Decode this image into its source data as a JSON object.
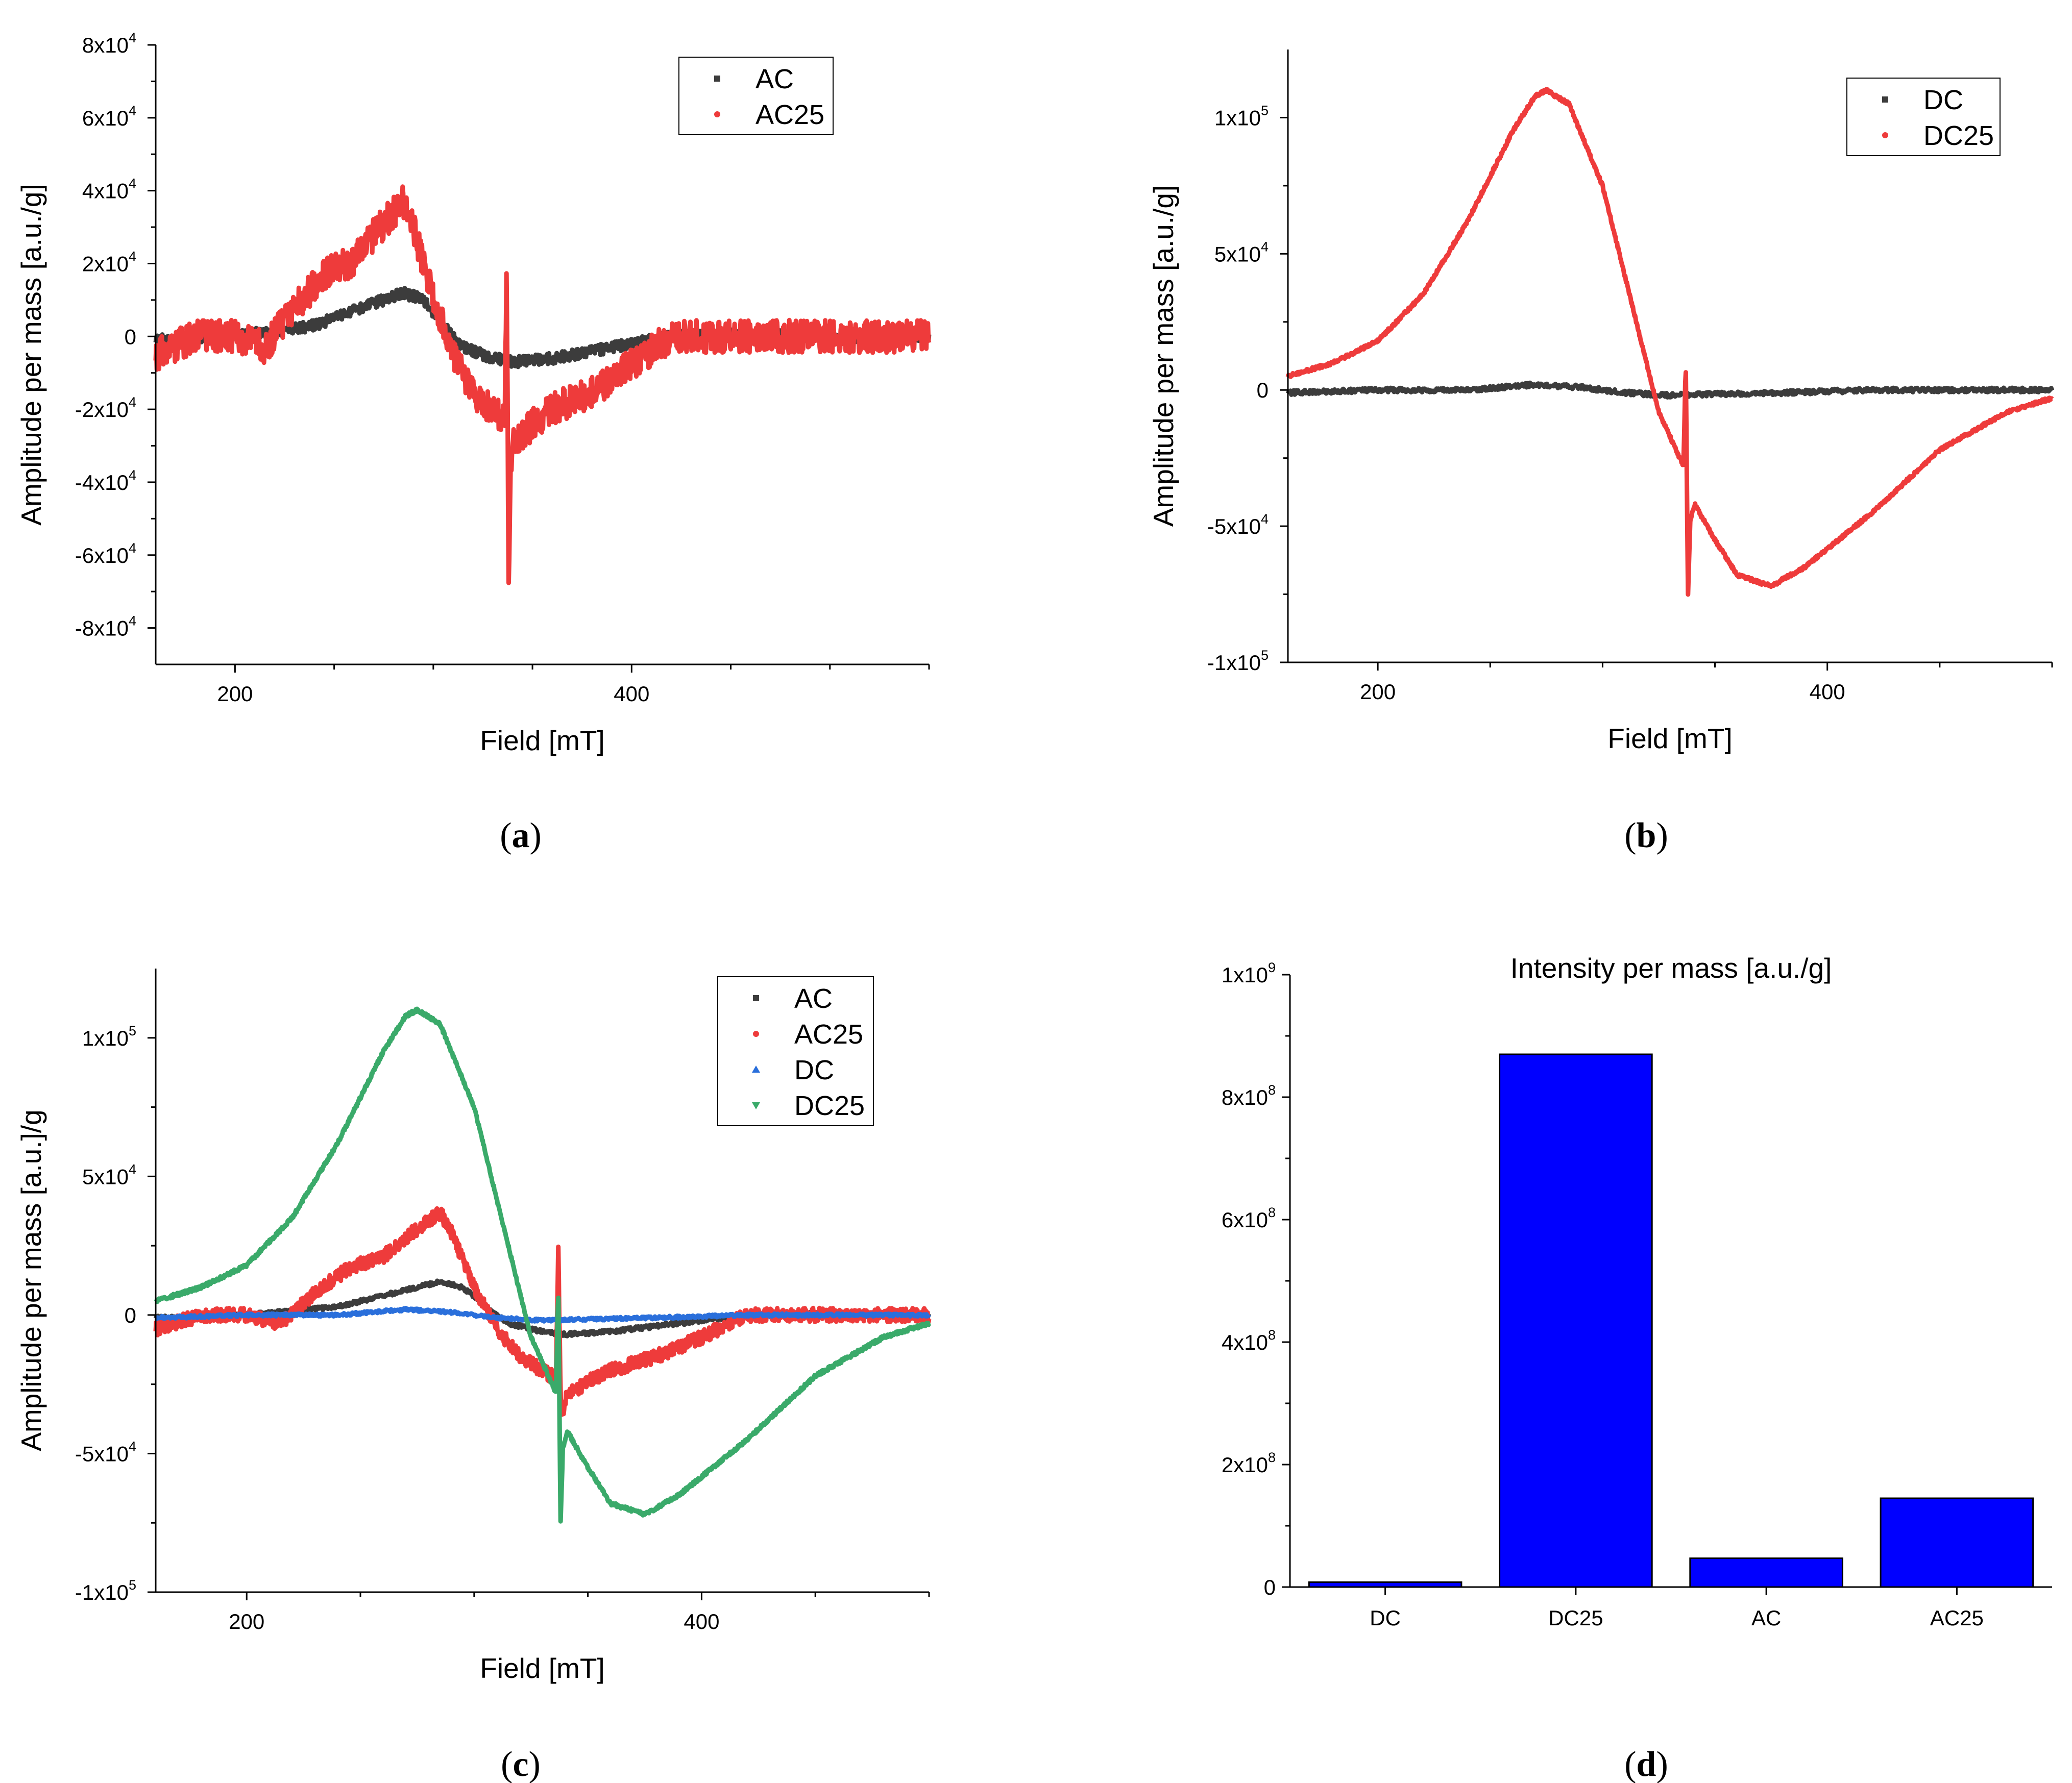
{
  "figure": {
    "captions": [
      "(a)",
      "(b)",
      "(c)",
      "(d)"
    ]
  },
  "chart_data": [
    {
      "id": "a",
      "type": "line",
      "caption": "(a)",
      "xlabel": "Field [mT]",
      "ylabel": "Amplitude per mass [a.u./g]",
      "xlim": [
        160,
        550
      ],
      "ylim": [
        -90000,
        80000
      ],
      "xticks": [
        200,
        400
      ],
      "yticks": [
        80000,
        60000,
        40000,
        20000,
        0,
        -20000,
        -40000,
        -60000,
        -80000
      ],
      "ytick_labels": [
        "8x10^4",
        "6x10^4",
        "4x10^4",
        "2x10^4",
        "0",
        "-2x10^4",
        "-4x10^4",
        "-6x10^4",
        "-8x10^4"
      ],
      "legend": [
        {
          "name": "AC",
          "color": "#3c3c3c",
          "marker": "square"
        },
        {
          "name": "AC25",
          "color": "#ee3b3b",
          "marker": "circle"
        }
      ],
      "series": [
        {
          "name": "AC",
          "color": "#3c3c3c",
          "noise": 1500,
          "x": [
            160,
            200,
            240,
            270,
            285,
            295,
            305,
            315,
            330,
            340,
            360,
            380,
            400,
            420,
            450,
            500,
            550
          ],
          "y": [
            -1000,
            0,
            3000,
            9000,
            12000,
            10000,
            3000,
            -3000,
            -6000,
            -7000,
            -6000,
            -4000,
            -2000,
            0,
            500,
            0,
            0
          ]
        },
        {
          "name": "AC25",
          "color": "#ee3b3b",
          "noise": 4500,
          "x": [
            160,
            180,
            200,
            215,
            230,
            245,
            260,
            270,
            280,
            285,
            290,
            300,
            310,
            320,
            330,
            336,
            337,
            338,
            339,
            340,
            341,
            342,
            345,
            350,
            360,
            380,
            400,
            420,
            430,
            450,
            500,
            550
          ],
          "y": [
            -5000,
            0,
            0,
            -3000,
            8000,
            17000,
            21000,
            28000,
            34000,
            37000,
            30000,
            10000,
            -5000,
            -15000,
            -20000,
            -23000,
            24000,
            -72000,
            -35000,
            -30000,
            -30000,
            -28000,
            -27000,
            -24000,
            -20000,
            -15000,
            -8000,
            0,
            0,
            0,
            0,
            0
          ]
        }
      ]
    },
    {
      "id": "b",
      "type": "line",
      "caption": "(b)",
      "xlabel": "Field [mT]",
      "ylabel": "Amplitude per mass [a.u./g]",
      "xlim": [
        160,
        500
      ],
      "ylim": [
        -100000,
        125000
      ],
      "xticks": [
        200,
        400
      ],
      "yticks": [
        100000,
        50000,
        0,
        -50000,
        -100000
      ],
      "ytick_labels": [
        "1x10^5",
        "5x10^4",
        "0",
        "-5x10^4",
        "-1x10^5"
      ],
      "legend": [
        {
          "name": "DC",
          "color": "#3c3c3c",
          "marker": "square"
        },
        {
          "name": "DC25",
          "color": "#ee3b3b",
          "marker": "circle"
        }
      ],
      "series": [
        {
          "name": "DC",
          "color": "#3c3c3c",
          "noise": 800,
          "x": [
            160,
            200,
            240,
            270,
            290,
            310,
            330,
            350,
            380,
            420,
            460,
            500
          ],
          "y": [
            -1000,
            0,
            0,
            2000,
            1000,
            -1000,
            -2000,
            -1500,
            -1000,
            0,
            0,
            0
          ],
          "samples": 900
        },
        {
          "name": "DC25",
          "color": "#ee3b3b",
          "noise": 600,
          "x": [
            160,
            180,
            200,
            220,
            240,
            260,
            270,
            275,
            285,
            300,
            315,
            325,
            336,
            337,
            338,
            339,
            341,
            350,
            360,
            375,
            390,
            420,
            450,
            480,
            500
          ],
          "y": [
            5000,
            10000,
            18000,
            35000,
            62000,
            95000,
            108000,
            110000,
            105000,
            75000,
            25000,
            -8000,
            -28000,
            10000,
            -75000,
            -48000,
            -42000,
            -55000,
            -68000,
            -72000,
            -65000,
            -45000,
            -22000,
            -8000,
            -3000
          ],
          "samples": 1400
        }
      ]
    },
    {
      "id": "c",
      "type": "line",
      "caption": "(c)",
      "xlabel": "Field [mT]",
      "ylabel": "Amplitude per mass [a.u.]/g",
      "xlim": [
        160,
        500
      ],
      "ylim": [
        -100000,
        125000
      ],
      "xticks": [
        200,
        400
      ],
      "yticks": [
        100000,
        50000,
        0,
        -50000,
        -100000
      ],
      "ytick_labels": [
        "1x10^5",
        "5x10^4",
        "0",
        "-5x10^4",
        "-1x10^5"
      ],
      "legend": [
        {
          "name": "AC",
          "color": "#3c3c3c",
          "marker": "square"
        },
        {
          "name": "AC25",
          "color": "#ee3b3b",
          "marker": "circle"
        },
        {
          "name": "DC",
          "color": "#2a6fdb",
          "marker": "triangle-up"
        },
        {
          "name": "DC25",
          "color": "#3aaa6a",
          "marker": "triangle-down"
        }
      ],
      "series": [
        {
          "name": "AC",
          "color": "#3c3c3c",
          "noise": 700,
          "x": [
            160,
            200,
            240,
            270,
            285,
            295,
            305,
            315,
            330,
            340,
            360,
            380,
            400,
            420,
            450,
            500
          ],
          "y": [
            -1000,
            0,
            3000,
            9000,
            12000,
            10000,
            3000,
            -3000,
            -6000,
            -7000,
            -6000,
            -4000,
            -2000,
            0,
            500,
            0
          ],
          "samples": 1000
        },
        {
          "name": "AC25",
          "color": "#ee3b3b",
          "noise": 2500,
          "x": [
            160,
            180,
            200,
            215,
            230,
            245,
            260,
            270,
            280,
            285,
            290,
            300,
            310,
            320,
            330,
            336,
            337,
            338,
            339,
            340,
            341,
            342,
            345,
            350,
            360,
            380,
            400,
            420,
            430,
            450,
            500
          ],
          "y": [
            -5000,
            0,
            0,
            -3000,
            8000,
            17000,
            21000,
            28000,
            34000,
            37000,
            30000,
            10000,
            -5000,
            -15000,
            -20000,
            -23000,
            24000,
            -30000,
            -35000,
            -30000,
            -30000,
            -28000,
            -27000,
            -24000,
            -20000,
            -15000,
            -8000,
            0,
            0,
            0,
            0
          ],
          "samples": 1600
        },
        {
          "name": "DC",
          "color": "#2a6fdb",
          "noise": 500,
          "x": [
            160,
            200,
            240,
            270,
            290,
            310,
            330,
            350,
            380,
            420,
            460,
            500
          ],
          "y": [
            -1000,
            0,
            0,
            2000,
            1000,
            -1000,
            -2000,
            -1500,
            -1000,
            0,
            0,
            0
          ],
          "samples": 900
        },
        {
          "name": "DC25",
          "color": "#3aaa6a",
          "noise": 600,
          "x": [
            160,
            180,
            200,
            220,
            240,
            260,
            270,
            275,
            285,
            300,
            315,
            325,
            336,
            337,
            338,
            339,
            341,
            350,
            360,
            375,
            390,
            420,
            450,
            480,
            500
          ],
          "y": [
            5000,
            10000,
            18000,
            35000,
            62000,
            95000,
            108000,
            110000,
            105000,
            75000,
            25000,
            -8000,
            -28000,
            10000,
            -75000,
            -48000,
            -42000,
            -55000,
            -68000,
            -72000,
            -65000,
            -45000,
            -22000,
            -8000,
            -3000
          ],
          "samples": 1400
        }
      ]
    },
    {
      "id": "d",
      "type": "bar",
      "caption": "(d)",
      "title": "Intensity per mass [a.u./g]",
      "xlabel": "",
      "ylabel": "",
      "categories": [
        "DC",
        "DC25",
        "AC",
        "AC25"
      ],
      "values": [
        8000000,
        870000000,
        47000000,
        145000000
      ],
      "ylim": [
        0,
        1000000000
      ],
      "yticks": [
        0,
        200000000,
        400000000,
        600000000,
        800000000,
        1000000000
      ],
      "ytick_labels": [
        "0",
        "2x10^8",
        "4x10^8",
        "6x10^8",
        "8x10^8",
        "1x10^9"
      ],
      "bar_color": "#0000ff"
    }
  ]
}
